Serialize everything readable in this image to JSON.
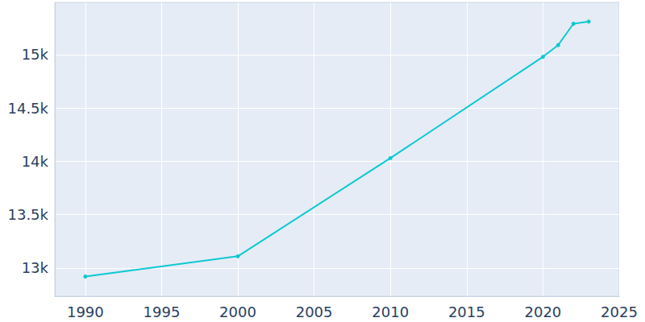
{
  "chart_data": {
    "type": "line",
    "x": [
      1990,
      2000,
      2010,
      2020,
      2021,
      2022,
      2023
    ],
    "values": [
      12920,
      13110,
      14030,
      14980,
      15090,
      15290,
      15310
    ],
    "color": "#0ec8d1",
    "marker": "circle",
    "xlim": [
      1988,
      2025
    ],
    "xticks": [
      1990,
      1995,
      2000,
      2005,
      2010,
      2015,
      2020,
      2025
    ],
    "ylim": [
      12735,
      15490
    ],
    "yticks": [
      {
        "value": 13000,
        "label": "13k"
      },
      {
        "value": 13500,
        "label": "13.5k"
      },
      {
        "value": 14000,
        "label": "14k"
      },
      {
        "value": 14500,
        "label": "14.5k"
      },
      {
        "value": 15000,
        "label": "15k"
      }
    ],
    "grid": true
  }
}
